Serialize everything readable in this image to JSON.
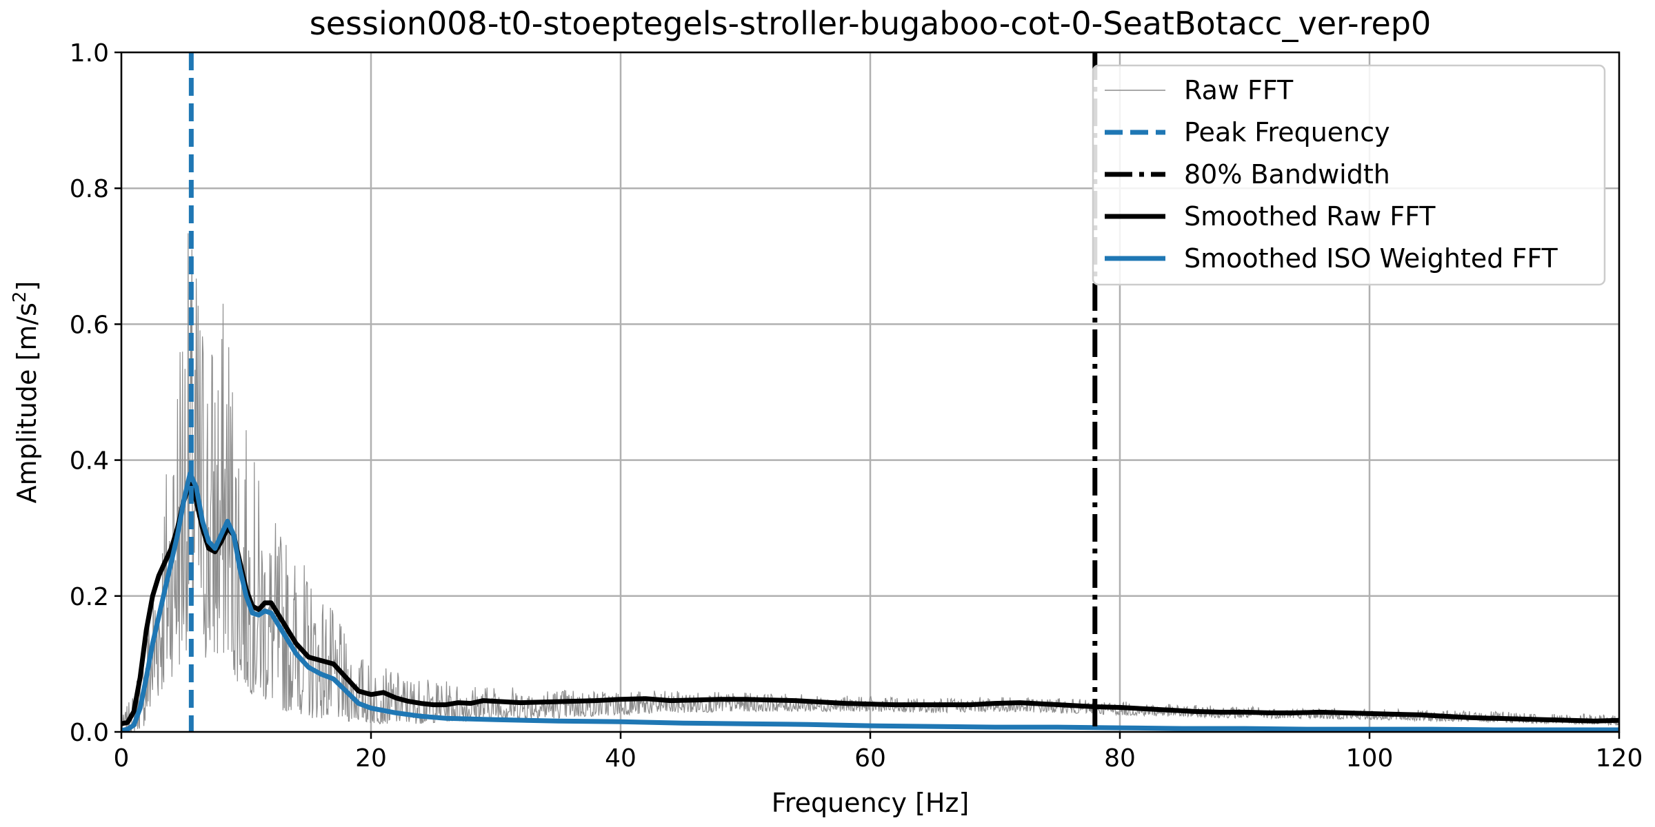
{
  "chart_data": {
    "type": "line",
    "title": "session008-t0-stoeptegels-stroller-bugaboo-cot-0-SeatBotacc_ver-rep0",
    "xlabel": "Frequency [Hz]",
    "ylabel_main": "Amplitude [m/s",
    "ylabel_sup": "2",
    "ylabel_end": "]",
    "xlim": [
      0,
      120
    ],
    "ylim": [
      0,
      1.0
    ],
    "xticks": [
      0,
      20,
      40,
      60,
      80,
      100,
      120
    ],
    "xtick_labels": [
      "0",
      "20",
      "40",
      "60",
      "80",
      "100",
      "120"
    ],
    "yticks": [
      0.0,
      0.2,
      0.4,
      0.6,
      0.8,
      1.0
    ],
    "ytick_labels": [
      "0.0",
      "0.2",
      "0.4",
      "0.6",
      "0.8",
      "1.0"
    ],
    "grid": true,
    "legend_position": "top-right",
    "colors": {
      "raw": "#8c8c8c",
      "peak": "#1f77b4",
      "bandwidth": "#000000",
      "smoothed_raw": "#000000",
      "smoothed_iso": "#1f77b4"
    },
    "peak_frequency": 5.6,
    "bandwidth_80": 78.0,
    "series": [
      {
        "key": "raw",
        "name": "Raw FFT",
        "envelope_x": [
          0,
          1,
          2,
          3,
          4,
          5,
          5.5,
          6,
          7,
          8,
          8.5,
          9,
          10,
          11,
          12,
          13,
          14,
          15,
          16,
          17,
          18,
          19,
          20,
          22,
          24,
          26,
          28,
          30,
          35,
          40,
          45,
          50,
          55,
          60,
          65,
          70,
          75,
          80,
          85,
          90,
          95,
          100,
          110,
          120
        ],
        "envelope_hi": [
          0.02,
          0.06,
          0.18,
          0.32,
          0.48,
          0.75,
          0.74,
          0.72,
          0.62,
          0.63,
          0.68,
          0.55,
          0.45,
          0.38,
          0.32,
          0.3,
          0.27,
          0.24,
          0.21,
          0.18,
          0.14,
          0.12,
          0.1,
          0.09,
          0.08,
          0.075,
          0.072,
          0.07,
          0.065,
          0.062,
          0.06,
          0.058,
          0.055,
          0.052,
          0.05,
          0.052,
          0.05,
          0.045,
          0.04,
          0.038,
          0.036,
          0.034,
          0.03,
          0.025
        ],
        "envelope_lo": [
          0.0,
          0.0,
          0.01,
          0.05,
          0.08,
          0.1,
          0.15,
          0.12,
          0.1,
          0.1,
          0.12,
          0.08,
          0.06,
          0.05,
          0.04,
          0.03,
          0.03,
          0.02,
          0.02,
          0.02,
          0.015,
          0.015,
          0.012,
          0.012,
          0.012,
          0.015,
          0.015,
          0.018,
          0.02,
          0.025,
          0.028,
          0.03,
          0.03,
          0.03,
          0.028,
          0.03,
          0.028,
          0.025,
          0.022,
          0.02,
          0.02,
          0.018,
          0.014,
          0.01
        ]
      },
      {
        "key": "smoothed_raw",
        "name": "Smoothed Raw FFT",
        "x": [
          0,
          0.5,
          1,
          1.5,
          2,
          2.5,
          3,
          3.5,
          4,
          4.5,
          5,
          5.5,
          6,
          6.5,
          7,
          7.5,
          8,
          8.5,
          9,
          9.5,
          10,
          10.5,
          11,
          11.5,
          12,
          13,
          14,
          15,
          16,
          17,
          18,
          19,
          20,
          21,
          22,
          23,
          24,
          25,
          26,
          27,
          28,
          29,
          30,
          32,
          34,
          36,
          38,
          40,
          42,
          44,
          46,
          48,
          50,
          52,
          54,
          56,
          58,
          60,
          62,
          64,
          66,
          68,
          70,
          72,
          74,
          76,
          78,
          80,
          82,
          84,
          86,
          88,
          90,
          92,
          94,
          96,
          98,
          100,
          102,
          104,
          106,
          108,
          110,
          112,
          114,
          116,
          118,
          120
        ],
        "y": [
          0.012,
          0.014,
          0.03,
          0.08,
          0.15,
          0.2,
          0.23,
          0.25,
          0.27,
          0.3,
          0.34,
          0.365,
          0.34,
          0.3,
          0.27,
          0.265,
          0.28,
          0.3,
          0.29,
          0.25,
          0.21,
          0.185,
          0.18,
          0.19,
          0.19,
          0.16,
          0.13,
          0.11,
          0.105,
          0.1,
          0.08,
          0.06,
          0.055,
          0.058,
          0.05,
          0.045,
          0.042,
          0.04,
          0.04,
          0.043,
          0.042,
          0.046,
          0.045,
          0.043,
          0.044,
          0.045,
          0.046,
          0.048,
          0.049,
          0.046,
          0.047,
          0.048,
          0.048,
          0.047,
          0.046,
          0.044,
          0.042,
          0.041,
          0.04,
          0.04,
          0.04,
          0.04,
          0.042,
          0.043,
          0.041,
          0.039,
          0.037,
          0.036,
          0.034,
          0.032,
          0.03,
          0.029,
          0.029,
          0.028,
          0.028,
          0.029,
          0.028,
          0.027,
          0.026,
          0.025,
          0.023,
          0.021,
          0.02,
          0.019,
          0.018,
          0.017,
          0.016,
          0.017
        ]
      },
      {
        "key": "smoothed_iso",
        "name": "Smoothed ISO Weighted FFT",
        "x": [
          0,
          0.5,
          1,
          1.5,
          2,
          2.5,
          3,
          3.5,
          4,
          4.5,
          5,
          5.5,
          6,
          6.5,
          7,
          7.5,
          8,
          8.5,
          9,
          9.5,
          10,
          10.5,
          11,
          11.5,
          12,
          13,
          14,
          15,
          16,
          17,
          18,
          19,
          20,
          22,
          24,
          26,
          28,
          30,
          35,
          40,
          45,
          50,
          55,
          60,
          65,
          70,
          75,
          80,
          85,
          90,
          95,
          100,
          105,
          110,
          115,
          120
        ],
        "y": [
          0.002,
          0.004,
          0.01,
          0.035,
          0.08,
          0.13,
          0.17,
          0.21,
          0.25,
          0.29,
          0.34,
          0.38,
          0.36,
          0.31,
          0.28,
          0.27,
          0.29,
          0.31,
          0.29,
          0.24,
          0.2,
          0.175,
          0.172,
          0.178,
          0.175,
          0.145,
          0.115,
          0.095,
          0.085,
          0.078,
          0.06,
          0.042,
          0.035,
          0.028,
          0.023,
          0.02,
          0.019,
          0.018,
          0.016,
          0.015,
          0.013,
          0.012,
          0.011,
          0.009,
          0.008,
          0.007,
          0.007,
          0.006,
          0.005,
          0.005,
          0.004,
          0.004,
          0.004,
          0.003,
          0.003,
          0.003
        ]
      }
    ],
    "legend": [
      {
        "key": "raw",
        "label": "Raw FFT",
        "style": "thin"
      },
      {
        "key": "peak",
        "label": "Peak Frequency",
        "style": "dashed"
      },
      {
        "key": "bandwidth",
        "label": "80% Bandwidth",
        "style": "dashdot"
      },
      {
        "key": "smoothed_raw",
        "label": "Smoothed Raw FFT",
        "style": "thick"
      },
      {
        "key": "smoothed_iso",
        "label": "Smoothed ISO Weighted FFT",
        "style": "thick"
      }
    ]
  }
}
